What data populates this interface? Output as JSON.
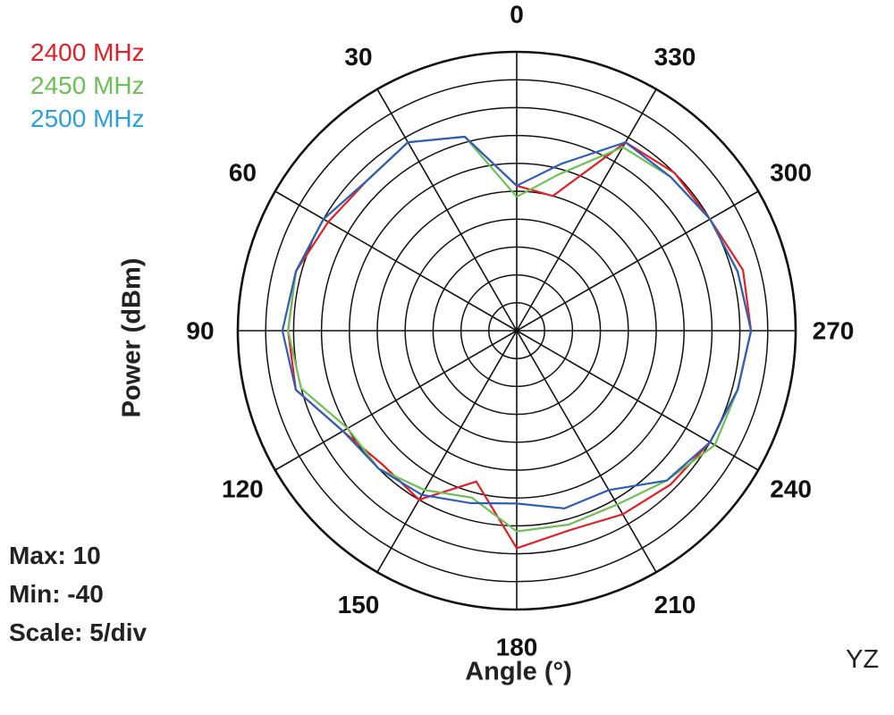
{
  "chart_data": {
    "type": "polar-line",
    "plane": "YZ",
    "xlabel": "Angle  (°)",
    "ylabel": "Power  (dBm)",
    "rlim": [
      -40,
      10
    ],
    "r_step": 5,
    "grid": true,
    "angular_ticks": [
      0,
      30,
      60,
      90,
      120,
      150,
      180,
      210,
      240,
      270,
      300,
      330
    ],
    "angle_direction": "counterclockwise, 0 at top",
    "legend_position": "top-left",
    "stats": {
      "max": "Max: 10",
      "min": "Min: -40",
      "scale": "Scale: 5/div"
    },
    "angles": [
      0,
      15,
      30,
      45,
      60,
      75,
      90,
      105,
      120,
      135,
      150,
      165,
      180,
      195,
      210,
      225,
      240,
      255,
      270,
      285,
      300,
      315,
      330,
      345
    ],
    "series": [
      {
        "name": "2400 MHz",
        "color": "#e31e26",
        "values": [
          -14,
          -4,
          -1,
          -2,
          -1,
          1,
          1,
          1,
          -4,
          -6,
          -5,
          -12,
          -1,
          -3,
          -2,
          -1,
          0,
          1,
          2,
          2,
          0,
          0,
          -1,
          -15
        ]
      },
      {
        "name": "2450 MHz",
        "color": "#6dbf56",
        "values": [
          -16,
          -4,
          -1,
          -2,
          0,
          1,
          1,
          0,
          -5,
          -5,
          -7,
          -9,
          -4,
          -4,
          -4,
          -2,
          1,
          1,
          2,
          1,
          0,
          -1,
          -2,
          -11
        ]
      },
      {
        "name": "2500 MHz",
        "color": "#2e5fb8",
        "values": [
          -14,
          -4,
          -1,
          -2,
          0,
          1,
          2,
          1,
          -4,
          -5,
          -6,
          -8,
          -9,
          -7,
          -7,
          -2,
          0,
          1,
          2,
          1,
          0,
          -1,
          -1,
          -9
        ]
      }
    ]
  }
}
